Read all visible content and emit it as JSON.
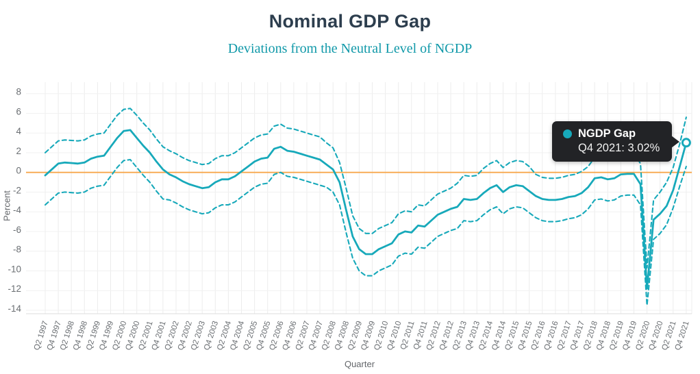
{
  "title": "Nominal GDP Gap",
  "subtitle": "Deviations from the Neutral Level of NGDP",
  "tooltip": {
    "series": "NGDP Gap",
    "value": "Q4 2021: 3.02%"
  },
  "axes": {
    "x_label": "Quarter",
    "y_label": "Percent",
    "y_ticks": [
      8,
      6,
      4,
      2,
      0,
      -2,
      -4,
      -6,
      -8,
      -10,
      -12,
      -14
    ]
  },
  "colors": {
    "line": "#17a9ba",
    "neutral_line": "#f7a84c",
    "title": "#2d3e4e",
    "subtitle": "#1199a9",
    "tooltip_bg": "#222326",
    "grid": "#ececec",
    "axis_line": "#dddddd",
    "axis_text": "#6a6e72"
  },
  "chart_data": {
    "type": "line",
    "title": "Nominal GDP Gap",
    "subtitle": "Deviations from the Neutral Level of NGDP",
    "xlabel": "Quarter",
    "ylabel": "Percent",
    "ylim": [
      -14.7,
      9.3
    ],
    "grid": true,
    "neutral_line": 0,
    "x_tick_every": 2,
    "last_point": {
      "x": "Q4 2021",
      "value": 3.02,
      "label": "Q4 2021: 3.02%"
    },
    "x": [
      "Q2 1997",
      "Q3 1997",
      "Q4 1997",
      "Q1 1998",
      "Q2 1998",
      "Q3 1998",
      "Q4 1998",
      "Q1 1999",
      "Q2 1999",
      "Q3 1999",
      "Q4 1999",
      "Q1 2000",
      "Q2 2000",
      "Q3 2000",
      "Q4 2000",
      "Q1 2001",
      "Q2 2001",
      "Q3 2001",
      "Q4 2001",
      "Q1 2002",
      "Q2 2002",
      "Q3 2002",
      "Q4 2002",
      "Q1 2003",
      "Q2 2003",
      "Q3 2003",
      "Q4 2003",
      "Q1 2004",
      "Q2 2004",
      "Q3 2004",
      "Q4 2004",
      "Q1 2005",
      "Q2 2005",
      "Q3 2005",
      "Q4 2005",
      "Q1 2006",
      "Q2 2006",
      "Q3 2006",
      "Q4 2006",
      "Q1 2007",
      "Q2 2007",
      "Q3 2007",
      "Q4 2007",
      "Q1 2008",
      "Q2 2008",
      "Q3 2008",
      "Q4 2008",
      "Q1 2009",
      "Q2 2009",
      "Q3 2009",
      "Q4 2009",
      "Q1 2010",
      "Q2 2010",
      "Q3 2010",
      "Q4 2010",
      "Q1 2011",
      "Q2 2011",
      "Q3 2011",
      "Q4 2011",
      "Q1 2012",
      "Q2 2012",
      "Q3 2012",
      "Q4 2012",
      "Q1 2013",
      "Q2 2013",
      "Q3 2013",
      "Q4 2013",
      "Q1 2014",
      "Q2 2014",
      "Q3 2014",
      "Q4 2014",
      "Q1 2015",
      "Q2 2015",
      "Q3 2015",
      "Q4 2015",
      "Q1 2016",
      "Q2 2016",
      "Q3 2016",
      "Q4 2016",
      "Q1 2017",
      "Q2 2017",
      "Q3 2017",
      "Q4 2017",
      "Q1 2018",
      "Q2 2018",
      "Q3 2018",
      "Q4 2018",
      "Q1 2019",
      "Q2 2019",
      "Q3 2019",
      "Q4 2019",
      "Q1 2020",
      "Q2 2020",
      "Q3 2020",
      "Q4 2020",
      "Q1 2021",
      "Q2 2021",
      "Q3 2021",
      "Q4 2021"
    ],
    "series": [
      {
        "name": "NGDP Gap",
        "style": "solid",
        "values": [
          -0.3,
          0.3,
          0.9,
          1.0,
          0.95,
          0.9,
          1.0,
          1.4,
          1.6,
          1.7,
          2.6,
          3.5,
          4.2,
          4.3,
          3.5,
          2.7,
          2.0,
          1.1,
          0.3,
          -0.2,
          -0.5,
          -0.9,
          -1.2,
          -1.4,
          -1.6,
          -1.5,
          -1.0,
          -0.7,
          -0.7,
          -0.4,
          0.1,
          0.6,
          1.1,
          1.4,
          1.5,
          2.4,
          2.6,
          2.2,
          2.1,
          1.9,
          1.7,
          1.5,
          1.3,
          0.8,
          0.3,
          -1.0,
          -3.8,
          -6.5,
          -7.8,
          -8.3,
          -8.3,
          -7.8,
          -7.5,
          -7.2,
          -6.3,
          -6.0,
          -6.1,
          -5.4,
          -5.5,
          -4.9,
          -4.3,
          -4.0,
          -3.7,
          -3.5,
          -2.7,
          -2.8,
          -2.7,
          -2.1,
          -1.6,
          -1.3,
          -2.0,
          -1.5,
          -1.3,
          -1.4,
          -1.9,
          -2.4,
          -2.7,
          -2.8,
          -2.8,
          -2.7,
          -2.5,
          -2.4,
          -2.1,
          -1.5,
          -0.6,
          -0.5,
          -0.7,
          -0.6,
          -0.2,
          -0.15,
          -0.15,
          -1.2,
          -11.8,
          -4.8,
          -4.2,
          -3.4,
          -1.8,
          0.6,
          3.02
        ]
      },
      {
        "name": "upper_band",
        "style": "dashed",
        "values": [
          2.0,
          2.6,
          3.2,
          3.3,
          3.25,
          3.2,
          3.3,
          3.7,
          3.9,
          4.0,
          4.9,
          5.8,
          6.4,
          6.5,
          5.8,
          5.0,
          4.3,
          3.4,
          2.6,
          2.2,
          1.9,
          1.5,
          1.2,
          1.0,
          0.8,
          0.9,
          1.4,
          1.7,
          1.7,
          2.0,
          2.5,
          3.0,
          3.5,
          3.8,
          3.9,
          4.7,
          4.9,
          4.5,
          4.4,
          4.2,
          4.0,
          3.8,
          3.6,
          3.0,
          2.5,
          1.0,
          -1.6,
          -4.4,
          -5.7,
          -6.2,
          -6.2,
          -5.7,
          -5.4,
          -5.1,
          -4.2,
          -3.9,
          -4.0,
          -3.3,
          -3.4,
          -2.8,
          -2.2,
          -1.9,
          -1.6,
          -1.1,
          -0.3,
          -0.4,
          -0.3,
          0.4,
          0.9,
          1.2,
          0.5,
          1.0,
          1.2,
          1.1,
          0.6,
          -0.2,
          -0.5,
          -0.6,
          -0.6,
          -0.5,
          -0.3,
          -0.2,
          0.1,
          0.6,
          1.5,
          1.6,
          1.4,
          1.5,
          1.9,
          1.95,
          1.95,
          0.9,
          -9.7,
          -2.8,
          -2.0,
          -1.0,
          0.5,
          2.9,
          5.6
        ]
      },
      {
        "name": "lower_band",
        "style": "dashed",
        "values": [
          -3.3,
          -2.7,
          -2.1,
          -2.0,
          -2.05,
          -2.1,
          -2.0,
          -1.6,
          -1.4,
          -1.3,
          -0.4,
          0.5,
          1.2,
          1.3,
          0.5,
          -0.3,
          -1.0,
          -1.9,
          -2.7,
          -2.8,
          -3.1,
          -3.5,
          -3.8,
          -4.0,
          -4.2,
          -4.1,
          -3.6,
          -3.3,
          -3.3,
          -3.0,
          -2.5,
          -2.0,
          -1.5,
          -1.2,
          -1.1,
          -0.2,
          0.0,
          -0.4,
          -0.5,
          -0.7,
          -0.9,
          -1.1,
          -1.3,
          -1.5,
          -2.0,
          -3.3,
          -6.1,
          -8.7,
          -10.0,
          -10.5,
          -10.5,
          -10.0,
          -9.7,
          -9.4,
          -8.5,
          -8.2,
          -8.3,
          -7.6,
          -7.7,
          -7.1,
          -6.5,
          -6.2,
          -5.9,
          -5.7,
          -4.9,
          -5.0,
          -4.9,
          -4.3,
          -3.8,
          -3.5,
          -4.2,
          -3.7,
          -3.5,
          -3.6,
          -4.1,
          -4.6,
          -4.9,
          -5.0,
          -5.0,
          -4.9,
          -4.7,
          -4.6,
          -4.3,
          -3.7,
          -2.8,
          -2.7,
          -2.9,
          -2.8,
          -2.4,
          -2.3,
          -2.3,
          -3.3,
          -13.5,
          -6.8,
          -6.2,
          -5.3,
          -3.6,
          -1.4,
          0.6
        ]
      }
    ]
  }
}
